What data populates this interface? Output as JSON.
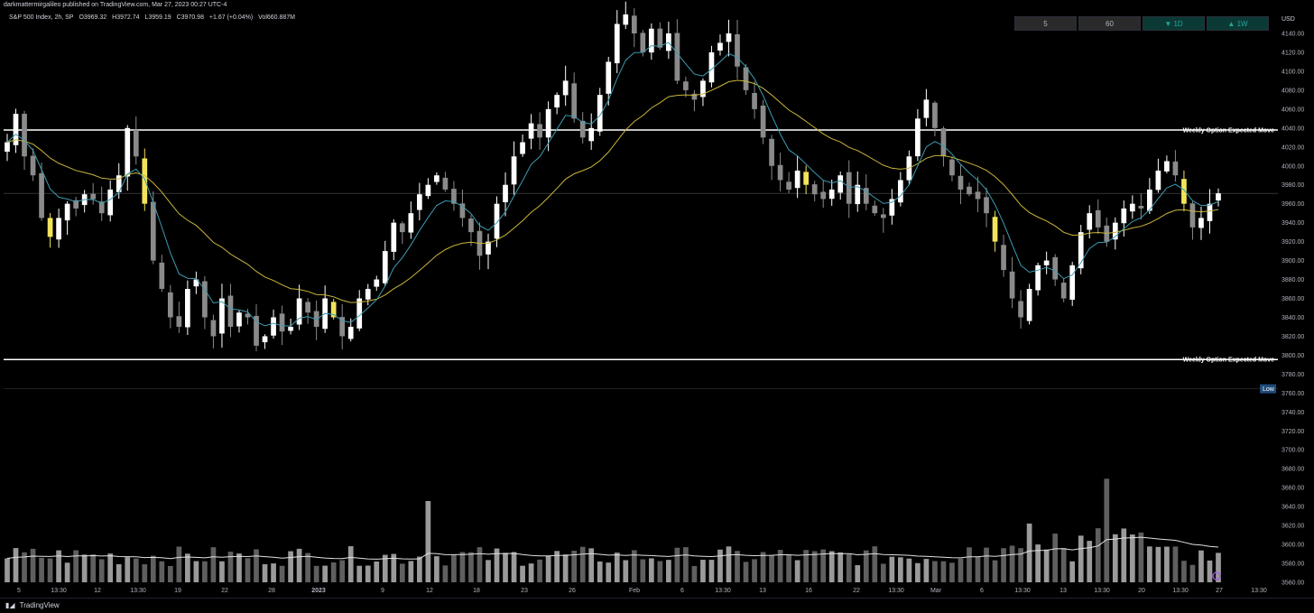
{
  "header": {
    "publish_line": "darkmattermirgalileo published on TradingView.com, Mar 27, 2023 00:27 UTC-4"
  },
  "legend": {
    "symbol": "S&P 500 Index, 2h, SP",
    "open": "O3969.32",
    "high": "H3972.74",
    "low": "L3959.19",
    "close": "C3970.98",
    "change": "+1.67 (+0.04%)",
    "volume": "Vol660.887M"
  },
  "intervals": [
    {
      "label": "5",
      "style": "neutral"
    },
    {
      "label": "60",
      "style": "neutral"
    },
    {
      "label": "▼ 1D",
      "style": "green"
    },
    {
      "label": "▲ 1W",
      "style": "green"
    }
  ],
  "footer": {
    "brand": "TradingView"
  },
  "colors": {
    "background": "#000000",
    "fast_ma": "#3d9bb0",
    "slow_ma": "#c9b53c",
    "up_candle": "#ffffff",
    "down_candle": "#8a8a8a",
    "highlight_candle": "#f2e35a",
    "last_price_tag": "#d1d4dc",
    "low_tag": "#1e4a7a"
  },
  "chart_data": {
    "type": "candlestick",
    "symbol": "S&P 500 Index",
    "interval": "2h",
    "currency": "USD",
    "y_axis": {
      "unit": "USD",
      "range": [
        3560,
        4150
      ],
      "ticks": [
        "4140.00",
        "4120.00",
        "4100.00",
        "4080.00",
        "4060.00",
        "4040.00",
        "4020.00",
        "4000.00",
        "3980.00",
        "3960.00",
        "3940.00",
        "3920.00",
        "3900.00",
        "3880.00",
        "3860.00",
        "3840.00",
        "3820.00",
        "3800.00",
        "3780.00",
        "3760.00",
        "3740.00",
        "3720.00",
        "3700.00",
        "3680.00",
        "3660.00",
        "3640.00",
        "3620.00",
        "3600.00",
        "3580.00",
        "3560.00"
      ]
    },
    "x_axis": {
      "ticks": [
        "5",
        "13:30",
        "12",
        "13:30",
        "19",
        "22",
        "28",
        "2023",
        "9",
        "12",
        "18",
        "23",
        "26",
        "Feb",
        "6",
        "13:30",
        "13",
        "16",
        "22",
        "13:30",
        "Mar",
        "6",
        "13:30",
        "13",
        "13:30",
        "20",
        "13:30",
        "27",
        "13:30"
      ]
    },
    "price_lines": [
      {
        "label": "Weekly Option Expected Move",
        "value": 4037.87,
        "tag": "4037.87"
      },
      {
        "label": "Weekly Option Expected Move",
        "value": 3795.41,
        "tag": "3795.41"
      }
    ],
    "low_marker": {
      "label": "Low",
      "value": 3764.49,
      "tag": "3764.49"
    },
    "last_price": {
      "value": 3970.98,
      "tag": "3970.98"
    },
    "close_path": [
      4025,
      4055,
      4010,
      3990,
      3945,
      3925,
      3945,
      3960,
      3955,
      3970,
      3965,
      3950,
      3975,
      3990,
      4040,
      4010,
      3960,
      3900,
      3870,
      3840,
      3830,
      3870,
      3880,
      3840,
      3820,
      3860,
      3830,
      3845,
      3840,
      3810,
      3820,
      3840,
      3825,
      3830,
      3860,
      3845,
      3830,
      3860,
      3840,
      3820,
      3830,
      3860,
      3870,
      3880,
      3910,
      3940,
      3930,
      3950,
      3970,
      3980,
      3990,
      3975,
      3960,
      3945,
      3930,
      3905,
      3920,
      3960,
      3980,
      4010,
      4025,
      4045,
      4030,
      4060,
      4075,
      4090,
      4050,
      4030,
      4040,
      4075,
      4110,
      4150,
      4160,
      4140,
      4120,
      4145,
      4125,
      4140,
      4090,
      4080,
      4070,
      4090,
      4120,
      4130,
      4140,
      4105,
      4080,
      4060,
      4030,
      4000,
      3985,
      3975,
      3995,
      3980,
      3970,
      3965,
      3975,
      3990,
      3960,
      3980,
      3960,
      3950,
      3945,
      3965,
      3985,
      4010,
      4050,
      4070,
      4040,
      4010,
      3990,
      3975,
      3970,
      3965,
      3950,
      3920,
      3890,
      3860,
      3840,
      3870,
      3895,
      3900,
      3880,
      3860,
      3895,
      3930,
      3950,
      3935,
      3920,
      3940,
      3955,
      3960,
      3955,
      3975,
      3995,
      4005,
      3990,
      3960,
      3935,
      3945,
      3960,
      3971
    ],
    "fast_ma_period_hint": "short",
    "slow_ma_period_hint": "long",
    "volume_series_hint": "bars",
    "grid": false,
    "legend_position": "top-left"
  }
}
